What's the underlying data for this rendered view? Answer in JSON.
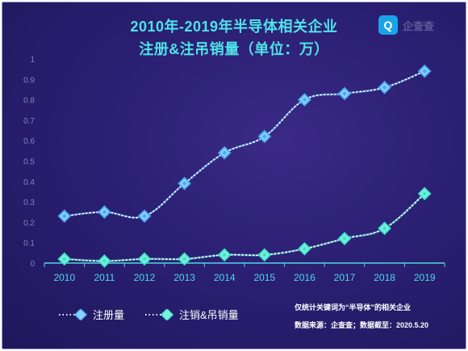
{
  "logo": {
    "icon_glyph": "Q",
    "text": "企查查"
  },
  "notes": {
    "scope": "仅统计关键词为“半导体”的相关企业",
    "source": "数据来源：企查查；数据截至：2020.5.20"
  },
  "colors": {
    "background": "#2b1f73",
    "title": "#4fe3e8",
    "registered": "#4aa8f0",
    "cancelled": "#3de0c8",
    "axis": "#4fd6e6"
  },
  "chart_data": {
    "type": "line",
    "title": "2010年-2019年半导体相关企业",
    "subtitle": "注册&注吊销量（单位：万）",
    "categories": [
      "2010",
      "2011",
      "2012",
      "2013",
      "2014",
      "2015",
      "2016",
      "2017",
      "2018",
      "2019"
    ],
    "y_ticks": [
      "0",
      "0.1",
      "0.2",
      "0.3",
      "0.4",
      "0.5",
      "0.6",
      "0.7",
      "0.8",
      "0.9",
      "1"
    ],
    "ylim": [
      0,
      1
    ],
    "grid": false,
    "legend_position": "bottom-left",
    "series": [
      {
        "name": "注册量",
        "color": "#4aa8f0",
        "values": [
          0.23,
          0.25,
          0.23,
          0.39,
          0.54,
          0.62,
          0.8,
          0.83,
          0.86,
          0.94
        ]
      },
      {
        "name": "注销&吊销量",
        "color": "#3de0c8",
        "values": [
          0.02,
          0.01,
          0.02,
          0.02,
          0.04,
          0.04,
          0.07,
          0.12,
          0.17,
          0.34
        ]
      }
    ]
  }
}
